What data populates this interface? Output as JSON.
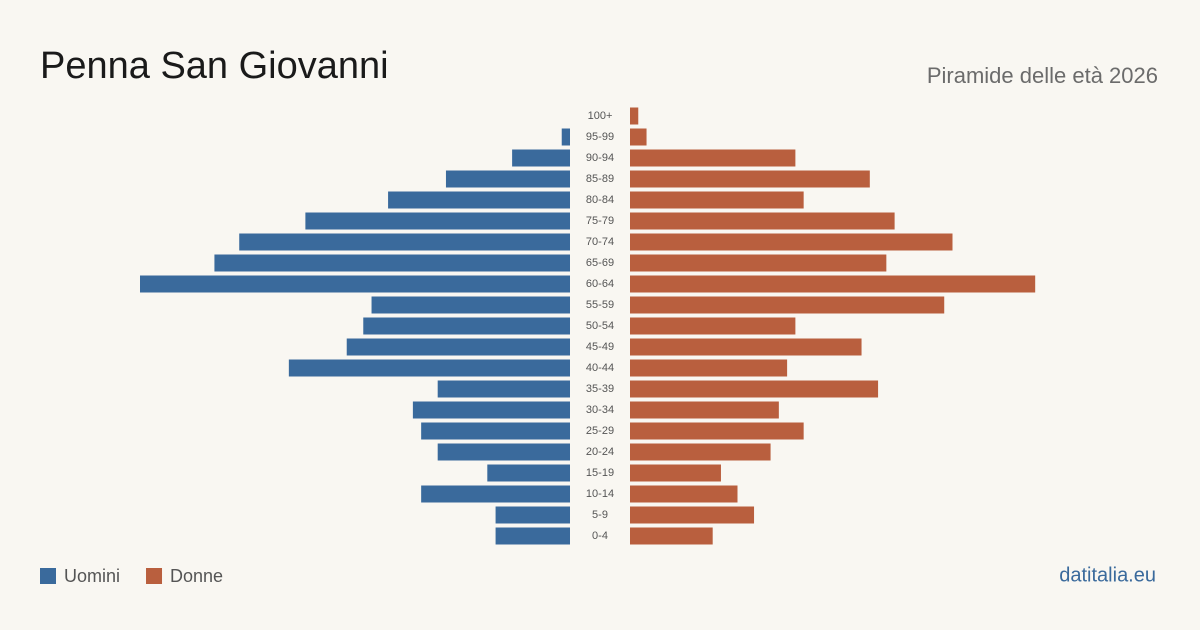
{
  "chart_data": {
    "type": "pyramid",
    "title": "Penna San Giovanni",
    "subtitle": "Piramide delle età 2026",
    "source": "datitalia.eu",
    "categories": [
      "100+",
      "95-99",
      "90-94",
      "85-89",
      "80-84",
      "75-79",
      "70-74",
      "65-69",
      "60-64",
      "55-59",
      "50-54",
      "45-49",
      "40-44",
      "35-39",
      "30-34",
      "25-29",
      "20-24",
      "15-19",
      "10-14",
      "5-9",
      "0-4"
    ],
    "series": [
      {
        "name": "Uomini",
        "color": "#3a6a9c",
        "values": [
          0,
          1,
          7,
          15,
          22,
          32,
          40,
          43,
          52,
          24,
          25,
          27,
          34,
          16,
          19,
          18,
          16,
          10,
          18,
          9,
          9
        ]
      },
      {
        "name": "Donne",
        "color": "#b95f3e",
        "values": [
          1,
          2,
          20,
          29,
          21,
          32,
          39,
          31,
          49,
          38,
          20,
          28,
          19,
          30,
          18,
          21,
          17,
          11,
          13,
          15,
          10
        ]
      }
    ]
  }
}
